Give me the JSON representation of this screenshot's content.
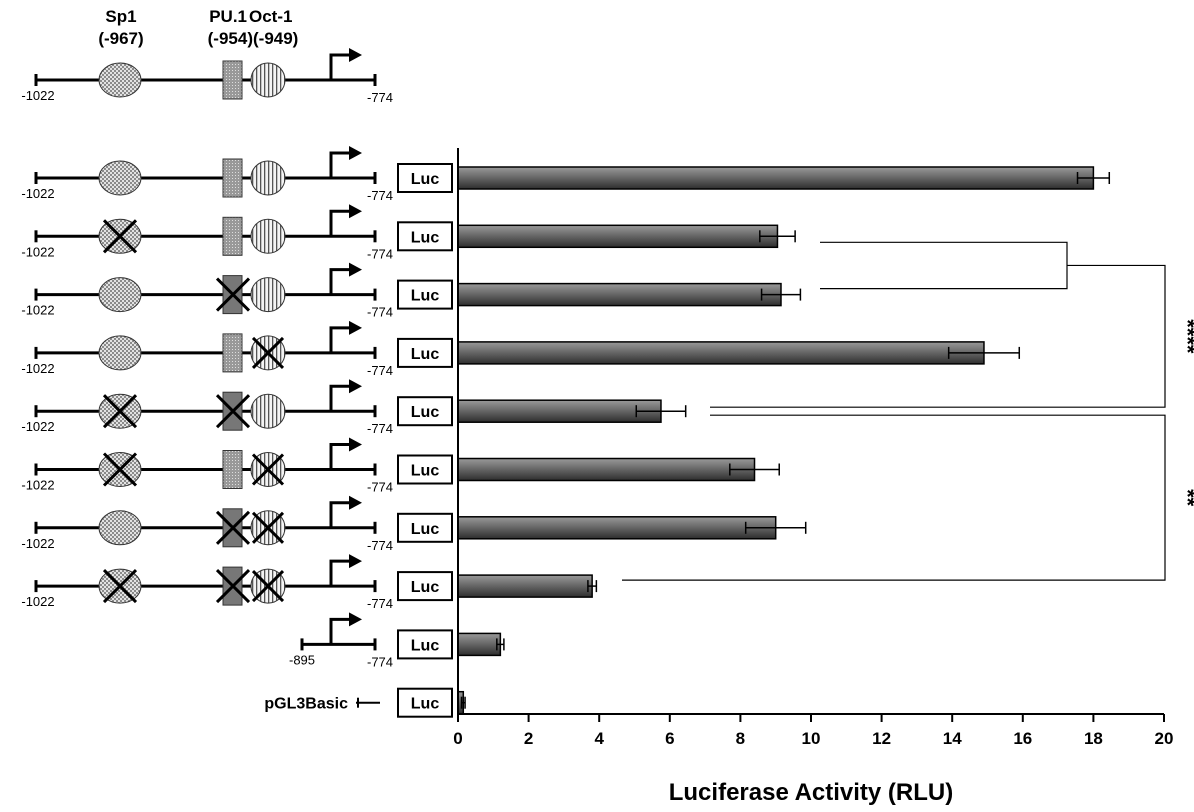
{
  "chart_data": {
    "type": "bar",
    "orientation": "horizontal",
    "xlabel": "Luciferase Activity (RLU)",
    "xlim": [
      0,
      20
    ],
    "x_ticks": [
      0,
      2,
      4,
      6,
      8,
      10,
      12,
      14,
      16,
      18,
      20
    ],
    "reporter_label": "Luc",
    "header": {
      "sites": [
        {
          "name": "Sp1",
          "position": "(-967)"
        },
        {
          "name": "PU.1",
          "position": "(-954)"
        },
        {
          "name": "Oct-1",
          "position": "(-949)"
        }
      ],
      "start": "-1022",
      "end": "-774"
    },
    "constructs": [
      {
        "start": "-1022",
        "end": "-774",
        "sp1_mut": false,
        "pu1_mut": false,
        "oct1_mut": false,
        "value": 18.0,
        "error": 0.45
      },
      {
        "start": "-1022",
        "end": "-774",
        "sp1_mut": true,
        "pu1_mut": false,
        "oct1_mut": false,
        "value": 9.05,
        "error": 0.5
      },
      {
        "start": "-1022",
        "end": "-774",
        "sp1_mut": false,
        "pu1_mut": true,
        "oct1_mut": false,
        "value": 9.15,
        "error": 0.55
      },
      {
        "start": "-1022",
        "end": "-774",
        "sp1_mut": false,
        "pu1_mut": false,
        "oct1_mut": true,
        "value": 14.9,
        "error": 1.0
      },
      {
        "start": "-1022",
        "end": "-774",
        "sp1_mut": true,
        "pu1_mut": true,
        "oct1_mut": false,
        "value": 5.75,
        "error": 0.7
      },
      {
        "start": "-1022",
        "end": "-774",
        "sp1_mut": true,
        "pu1_mut": false,
        "oct1_mut": true,
        "value": 8.4,
        "error": 0.7
      },
      {
        "start": "-1022",
        "end": "-774",
        "sp1_mut": false,
        "pu1_mut": true,
        "oct1_mut": true,
        "value": 9.0,
        "error": 0.85
      },
      {
        "start": "-1022",
        "end": "-774",
        "sp1_mut": true,
        "pu1_mut": true,
        "oct1_mut": true,
        "value": 3.8,
        "error": 0.12
      },
      {
        "start": "-895",
        "end": "-774",
        "short": true,
        "value": 1.2,
        "error": 0.1
      },
      {
        "label": "pGL3Basic",
        "empty": true,
        "value": 0.15,
        "error": 0.05
      }
    ],
    "significance": [
      {
        "label": "****",
        "groups": [
          [
            1,
            2
          ],
          [
            4
          ]
        ]
      },
      {
        "label": "**",
        "groups": [
          [
            4
          ],
          [
            7
          ]
        ]
      }
    ]
  }
}
